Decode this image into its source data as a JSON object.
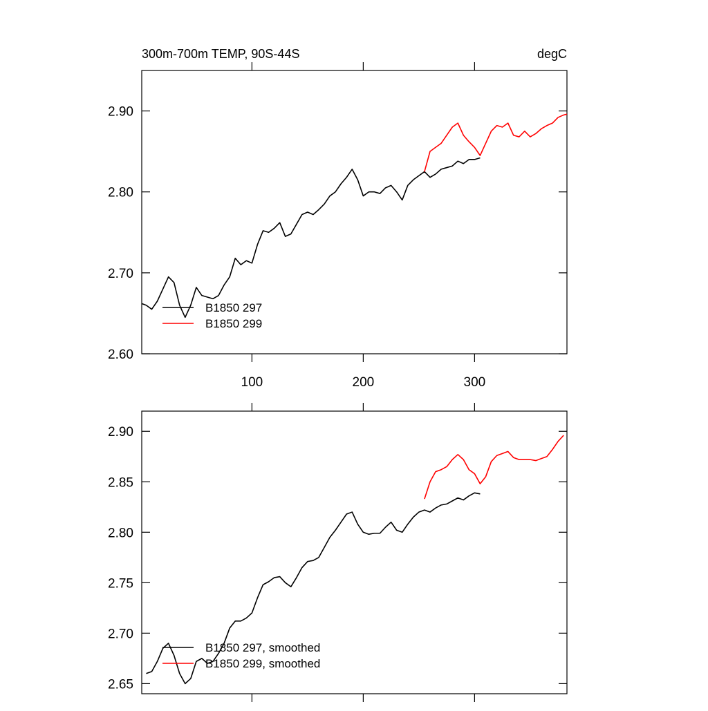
{
  "chart_data": [
    {
      "type": "line",
      "title": "300m-700m TEMP, 90S-44S",
      "units": "degC",
      "xlim": [
        1,
        383
      ],
      "ylim": [
        2.6,
        2.95
      ],
      "xticks": [
        100,
        200,
        300
      ],
      "yticks": [
        {
          "value": 2.6,
          "label": "2.60"
        },
        {
          "value": 2.7,
          "label": "2.70"
        },
        {
          "value": 2.8,
          "label": "2.80"
        },
        {
          "value": 2.9,
          "label": "2.90"
        }
      ],
      "legend": "lower left",
      "series": [
        {
          "name": "B1850 297",
          "color": "#000000",
          "x": [
            1,
            5,
            10,
            15,
            20,
            25,
            30,
            35,
            40,
            45,
            50,
            55,
            60,
            65,
            70,
            75,
            80,
            85,
            90,
            95,
            100,
            105,
            110,
            115,
            120,
            125,
            130,
            135,
            140,
            145,
            150,
            155,
            160,
            165,
            170,
            175,
            180,
            185,
            190,
            195,
            200,
            205,
            210,
            215,
            220,
            225,
            230,
            235,
            240,
            245,
            250,
            255,
            260,
            265,
            270,
            275,
            280,
            285,
            290,
            295,
            300,
            305
          ],
          "values": [
            2.662,
            2.66,
            2.655,
            2.665,
            2.68,
            2.695,
            2.688,
            2.66,
            2.645,
            2.66,
            2.682,
            2.672,
            2.67,
            2.668,
            2.672,
            2.685,
            2.695,
            2.718,
            2.71,
            2.715,
            2.712,
            2.735,
            2.752,
            2.75,
            2.755,
            2.762,
            2.745,
            2.748,
            2.76,
            2.772,
            2.775,
            2.772,
            2.778,
            2.785,
            2.795,
            2.8,
            2.81,
            2.818,
            2.828,
            2.815,
            2.795,
            2.8,
            2.8,
            2.798,
            2.805,
            2.808,
            2.8,
            2.79,
            2.808,
            2.815,
            2.82,
            2.825,
            2.818,
            2.822,
            2.828,
            2.83,
            2.832,
            2.838,
            2.835,
            2.84,
            2.84,
            2.842
          ]
        },
        {
          "name": "B1850 299",
          "color": "#ff0000",
          "x": [
            255,
            260,
            265,
            270,
            275,
            280,
            285,
            290,
            295,
            300,
            305,
            310,
            315,
            320,
            325,
            330,
            335,
            340,
            345,
            350,
            355,
            360,
            365,
            370,
            375,
            380,
            383
          ],
          "values": [
            2.825,
            2.85,
            2.855,
            2.86,
            2.87,
            2.88,
            2.885,
            2.87,
            2.862,
            2.855,
            2.845,
            2.86,
            2.875,
            2.882,
            2.88,
            2.885,
            2.87,
            2.868,
            2.875,
            2.868,
            2.872,
            2.878,
            2.882,
            2.885,
            2.892,
            2.895,
            2.896
          ]
        }
      ]
    },
    {
      "type": "line",
      "xlim": [
        1,
        383
      ],
      "ylim": [
        2.64,
        2.92
      ],
      "xticks": [
        100,
        200,
        300
      ],
      "yticks": [
        {
          "value": 2.65,
          "label": "2.65"
        },
        {
          "value": 2.7,
          "label": "2.70"
        },
        {
          "value": 2.75,
          "label": "2.75"
        },
        {
          "value": 2.8,
          "label": "2.80"
        },
        {
          "value": 2.85,
          "label": "2.85"
        },
        {
          "value": 2.9,
          "label": "2.90"
        }
      ],
      "legend": "lower left",
      "series": [
        {
          "name": "B1850 297, smoothed",
          "color": "#000000",
          "x": [
            5,
            10,
            15,
            20,
            25,
            30,
            35,
            40,
            45,
            50,
            55,
            60,
            65,
            70,
            75,
            80,
            85,
            90,
            95,
            100,
            105,
            110,
            115,
            120,
            125,
            130,
            135,
            140,
            145,
            150,
            155,
            160,
            165,
            170,
            175,
            180,
            185,
            190,
            195,
            200,
            205,
            210,
            215,
            220,
            225,
            230,
            235,
            240,
            245,
            250,
            255,
            260,
            265,
            270,
            275,
            280,
            285,
            290,
            295,
            300,
            305
          ],
          "values": [
            2.66,
            2.662,
            2.672,
            2.685,
            2.69,
            2.678,
            2.66,
            2.65,
            2.655,
            2.672,
            2.675,
            2.67,
            2.672,
            2.68,
            2.69,
            2.705,
            2.712,
            2.712,
            2.715,
            2.72,
            2.735,
            2.748,
            2.751,
            2.755,
            2.756,
            2.75,
            2.746,
            2.755,
            2.765,
            2.771,
            2.772,
            2.775,
            2.785,
            2.795,
            2.802,
            2.81,
            2.818,
            2.82,
            2.808,
            2.8,
            2.798,
            2.799,
            2.799,
            2.805,
            2.81,
            2.802,
            2.8,
            2.808,
            2.815,
            2.82,
            2.822,
            2.82,
            2.824,
            2.827,
            2.828,
            2.831,
            2.834,
            2.832,
            2.836,
            2.839,
            2.838
          ]
        },
        {
          "name": "B1850 299, smoothed",
          "color": "#ff0000",
          "x": [
            255,
            260,
            265,
            270,
            275,
            280,
            285,
            290,
            295,
            300,
            305,
            310,
            315,
            320,
            325,
            330,
            335,
            340,
            345,
            350,
            355,
            360,
            365,
            370,
            375,
            380
          ],
          "values": [
            2.833,
            2.85,
            2.86,
            2.862,
            2.865,
            2.872,
            2.877,
            2.872,
            2.862,
            2.858,
            2.848,
            2.855,
            2.87,
            2.876,
            2.878,
            2.88,
            2.874,
            2.872,
            2.872,
            2.872,
            2.871,
            2.873,
            2.875,
            2.882,
            2.89,
            2.896
          ]
        }
      ]
    }
  ]
}
